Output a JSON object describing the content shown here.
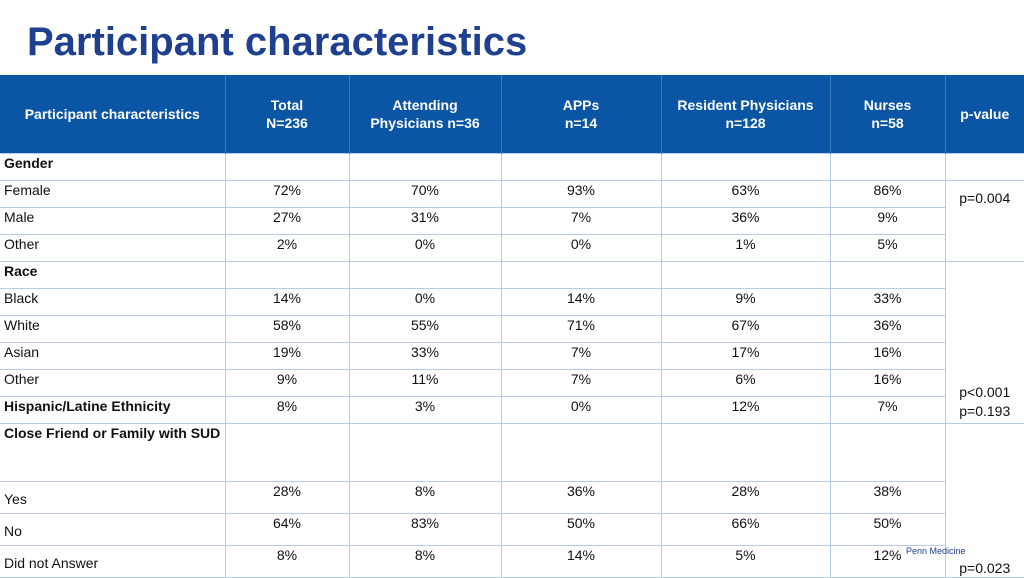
{
  "title": "Participant characteristics",
  "footer": "Penn Medicine",
  "table": {
    "headers": [
      [
        "Participant characteristics"
      ],
      [
        "Total",
        "N=236"
      ],
      [
        "Attending",
        "Physicians n=36"
      ],
      [
        "APPs",
        "n=14"
      ],
      [
        "Resident Physicians",
        "n=128"
      ],
      [
        "Nurses",
        "n=58"
      ],
      [
        "p-value"
      ]
    ],
    "categories": {
      "gender": "Gender",
      "race": "Race",
      "hispanic": "Hispanic/Latine Ethnicity",
      "sud": "Close Friend or Family with SUD"
    },
    "gender": [
      {
        "label": "Female",
        "values": [
          "72%",
          "70%",
          "93%",
          "63%",
          "86%"
        ]
      },
      {
        "label": "Male",
        "values": [
          "27%",
          "31%",
          "7%",
          "36%",
          "9%"
        ]
      },
      {
        "label": "Other",
        "values": [
          "2%",
          "0%",
          "0%",
          "1%",
          "5%"
        ]
      }
    ],
    "race": [
      {
        "label": "Black",
        "values": [
          "14%",
          "0%",
          "14%",
          "9%",
          "33%"
        ]
      },
      {
        "label": "White",
        "values": [
          "58%",
          "55%",
          "71%",
          "67%",
          "36%"
        ]
      },
      {
        "label": "Asian",
        "values": [
          "19%",
          "33%",
          "7%",
          "17%",
          "16%"
        ]
      },
      {
        "label": "Other",
        "values": [
          "9%",
          "11%",
          "7%",
          "6%",
          "16%"
        ]
      }
    ],
    "hispanic_values": [
      "8%",
      "3%",
      "0%",
      "12%",
      "7%"
    ],
    "sud": [
      {
        "label": "Yes",
        "values": [
          "28%",
          "8%",
          "36%",
          "28%",
          "38%"
        ]
      },
      {
        "label": "No",
        "values": [
          "64%",
          "83%",
          "50%",
          "66%",
          "50%"
        ]
      },
      {
        "label": "Did not Answer",
        "values": [
          "8%",
          "8%",
          "14%",
          "5%",
          "12%"
        ]
      }
    ],
    "pvalues": {
      "gender": "p=0.004",
      "race": "p<0.001",
      "hispanic": "p=0.193",
      "sud": "p=0.023"
    }
  },
  "colors": {
    "title": "#1f3f8f",
    "header_bg": "#0b56a4",
    "header_text": "#ffffff",
    "grid": "#b8cbe6"
  }
}
